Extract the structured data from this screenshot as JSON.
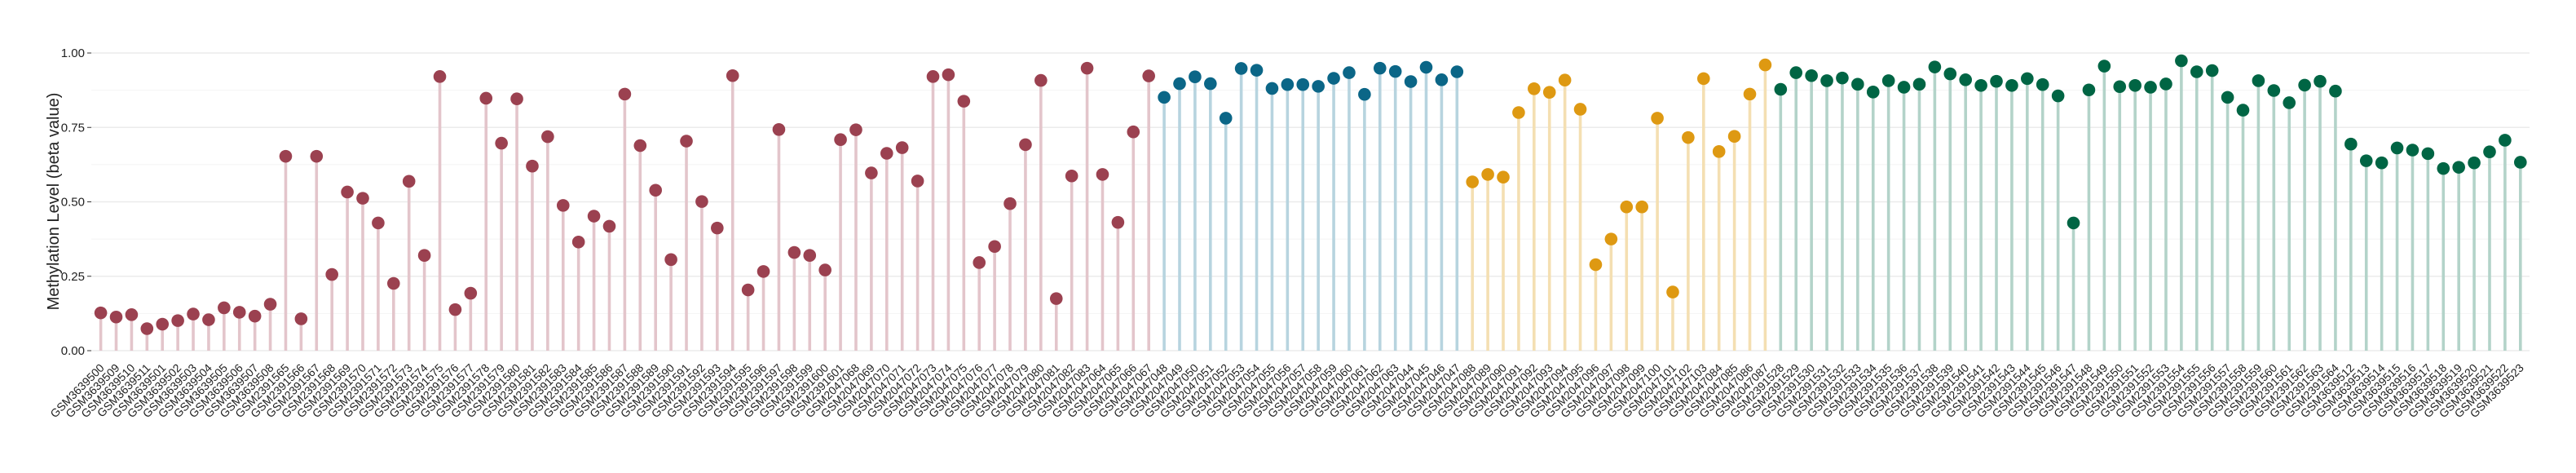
{
  "chart_data": {
    "type": "lollipop",
    "title": "",
    "xlabel": "",
    "ylabel": "Methylation Level (beta value)",
    "ylim": [
      0,
      1
    ],
    "yticks": [
      "0.00",
      "0.25",
      "0.50",
      "0.75",
      "1.00"
    ],
    "ytick_values": [
      0,
      0.25,
      0.5,
      0.75,
      1
    ],
    "grid": true,
    "legend": "none",
    "groups": [
      {
        "count": 69,
        "point_color": "#9b4150",
        "stem_color": "#e3c5cb"
      },
      {
        "count": 20,
        "point_color": "#0b6687",
        "stem_color": "#b7d4df"
      },
      {
        "count": 20,
        "point_color": "#de9912",
        "stem_color": "#f4dfb2"
      },
      {
        "count": 49,
        "point_color": "#006544",
        "stem_color": "#b3d3c9"
      }
    ],
    "categories": [
      "GSM3639500",
      "GSM3639509",
      "GSM3639510",
      "GSM3639511",
      "GSM3639501",
      "GSM3639502",
      "GSM3639503",
      "GSM3639504",
      "GSM3639505",
      "GSM3639506",
      "GSM3639507",
      "GSM3639508",
      "GSM2391565",
      "GSM2391566",
      "GSM2391567",
      "GSM2391568",
      "GSM2391569",
      "GSM2391570",
      "GSM2391571",
      "GSM2391572",
      "GSM2391573",
      "GSM2391574",
      "GSM2391575",
      "GSM2391576",
      "GSM2391577",
      "GSM2391578",
      "GSM2391579",
      "GSM2391580",
      "GSM2391581",
      "GSM2391582",
      "GSM2391583",
      "GSM2391584",
      "GSM2391585",
      "GSM2391586",
      "GSM2391587",
      "GSM2391588",
      "GSM2391589",
      "GSM2391590",
      "GSM2391591",
      "GSM2391592",
      "GSM2391593",
      "GSM2391594",
      "GSM2391595",
      "GSM2391596",
      "GSM2391597",
      "GSM2391598",
      "GSM2391599",
      "GSM2391600",
      "GSM2391601",
      "GSM2047068",
      "GSM2047069",
      "GSM2047070",
      "GSM2047071",
      "GSM2047072",
      "GSM2047073",
      "GSM2047074",
      "GSM2047075",
      "GSM2047076",
      "GSM2047077",
      "GSM2047078",
      "GSM2047079",
      "GSM2047080",
      "GSM2047081",
      "GSM2047082",
      "GSM2047083",
      "GSM2047064",
      "GSM2047065",
      "GSM2047066",
      "GSM2047067",
      "GSM2047048",
      "GSM2047049",
      "GSM2047050",
      "GSM2047051",
      "GSM2047052",
      "GSM2047053",
      "GSM2047054",
      "GSM2047055",
      "GSM2047056",
      "GSM2047057",
      "GSM2047058",
      "GSM2047059",
      "GSM2047060",
      "GSM2047061",
      "GSM2047062",
      "GSM2047063",
      "GSM2047044",
      "GSM2047045",
      "GSM2047046",
      "GSM2047047",
      "GSM2047088",
      "GSM2047089",
      "GSM2047090",
      "GSM2047091",
      "GSM2047092",
      "GSM2047093",
      "GSM2047094",
      "GSM2047095",
      "GSM2047096",
      "GSM2047097",
      "GSM2047098",
      "GSM2047099",
      "GSM2047100",
      "GSM2047101",
      "GSM2047102",
      "GSM2047103",
      "GSM2047084",
      "GSM2047085",
      "GSM2047086",
      "GSM2047087",
      "GSM2391528",
      "GSM2391529",
      "GSM2391530",
      "GSM2391531",
      "GSM2391532",
      "GSM2391533",
      "GSM2391534",
      "GSM2391535",
      "GSM2391536",
      "GSM2391537",
      "GSM2391538",
      "GSM2391539",
      "GSM2391540",
      "GSM2391541",
      "GSM2391542",
      "GSM2391543",
      "GSM2391544",
      "GSM2391545",
      "GSM2391546",
      "GSM2391547",
      "GSM2391548",
      "GSM2391549",
      "GSM2391550",
      "GSM2391551",
      "GSM2391552",
      "GSM2391553",
      "GSM2391554",
      "GSM2391555",
      "GSM2391556",
      "GSM2391557",
      "GSM2391558",
      "GSM2391559",
      "GSM2391560",
      "GSM2391561",
      "GSM2391562",
      "GSM2391563",
      "GSM2391564",
      "GSM3639512",
      "GSM3639513",
      "GSM3639514",
      "GSM3639515",
      "GSM3639516",
      "GSM3639517",
      "GSM3639518",
      "GSM3639519",
      "GSM3639520",
      "GSM3639521",
      "GSM3639522",
      "GSM3639523"
    ],
    "values": [
      0.127,
      0.113,
      0.121,
      0.074,
      0.089,
      0.101,
      0.123,
      0.104,
      0.144,
      0.129,
      0.116,
      0.156,
      0.653,
      0.107,
      0.653,
      0.256,
      0.533,
      0.512,
      0.429,
      0.226,
      0.569,
      0.32,
      0.921,
      0.138,
      0.193,
      0.848,
      0.697,
      0.846,
      0.62,
      0.719,
      0.488,
      0.365,
      0.452,
      0.418,
      0.862,
      0.689,
      0.539,
      0.306,
      0.704,
      0.501,
      0.412,
      0.924,
      0.204,
      0.266,
      0.743,
      0.33,
      0.32,
      0.271,
      0.709,
      0.742,
      0.597,
      0.663,
      0.682,
      0.57,
      0.921,
      0.927,
      0.838,
      0.296,
      0.35,
      0.494,
      0.692,
      0.908,
      0.175,
      0.587,
      0.949,
      0.592,
      0.431,
      0.735,
      0.923,
      0.851,
      0.897,
      0.92,
      0.897,
      0.781,
      0.948,
      0.942,
      0.881,
      0.894,
      0.894,
      0.888,
      0.915,
      0.934,
      0.861,
      0.949,
      0.938,
      0.904,
      0.952,
      0.91,
      0.937,
      0.567,
      0.592,
      0.583,
      0.8,
      0.88,
      0.868,
      0.909,
      0.811,
      0.289,
      0.375,
      0.483,
      0.483,
      0.781,
      0.197,
      0.716,
      0.914,
      0.669,
      0.72,
      0.862,
      0.96,
      0.878,
      0.934,
      0.924,
      0.907,
      0.916,
      0.895,
      0.869,
      0.907,
      0.885,
      0.895,
      0.953,
      0.93,
      0.91,
      0.891,
      0.905,
      0.891,
      0.914,
      0.894,
      0.856,
      0.429,
      0.876,
      0.956,
      0.887,
      0.891,
      0.885,
      0.896,
      0.974,
      0.937,
      0.941,
      0.851,
      0.808,
      0.907,
      0.874,
      0.833,
      0.892,
      0.905,
      0.872,
      0.694,
      0.638,
      0.631,
      0.681,
      0.674,
      0.662,
      0.612,
      0.616,
      0.631,
      0.668,
      0.707,
      0.633
    ]
  }
}
